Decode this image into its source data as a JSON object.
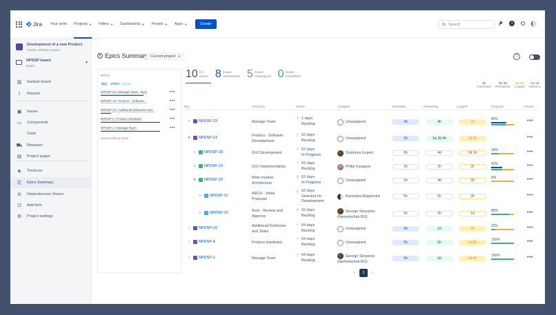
{
  "topbar": {
    "app_name": "Jira",
    "nav": [
      {
        "label": "Your work",
        "dropdown": false,
        "active": false
      },
      {
        "label": "Projects",
        "dropdown": true,
        "active": true
      },
      {
        "label": "Filters",
        "dropdown": true,
        "active": false
      },
      {
        "label": "Dashboards",
        "dropdown": true,
        "active": false
      },
      {
        "label": "People",
        "dropdown": true,
        "active": false
      },
      {
        "label": "Apps",
        "dropdown": true,
        "active": false
      }
    ],
    "create_label": "Create",
    "search_placeholder": "Search"
  },
  "sidebar": {
    "project_title": "Development of a new Product",
    "project_subtitle": "Classic software project",
    "board_title": "NPDSP board",
    "board_subtitle": "Board",
    "items": [
      {
        "label": "Kanban board",
        "icon": "kanban-icon"
      },
      {
        "label": "Reports",
        "icon": "reports-icon"
      },
      {
        "label": "Issues",
        "icon": "issues-icon"
      },
      {
        "label": "Components",
        "icon": "components-icon"
      },
      {
        "label": "Code",
        "icon": "code-icon"
      },
      {
        "label": "Releases",
        "icon": "releases-icon"
      },
      {
        "label": "Project pages",
        "icon": "pages-icon"
      },
      {
        "label": "TimeLine",
        "icon": "timeline-icon"
      },
      {
        "label": "Epics Summary",
        "icon": "epics-summary-icon",
        "active": true
      },
      {
        "label": "Dependencies Viewer",
        "icon": "dependencies-icon"
      },
      {
        "label": "Add item",
        "icon": "add-item-icon"
      },
      {
        "label": "Project settings",
        "icon": "settings-icon"
      }
    ]
  },
  "main": {
    "title": "Epics Summary",
    "project_select": "Current project",
    "epics_panel": {
      "heading": "EPICS",
      "filters": [
        "ALL",
        "OPEN",
        "DONE"
      ],
      "epics": [
        {
          "label": "NPDSP-23 / Manage Team - Epic",
          "bar": 72
        },
        {
          "label": "NPDSP-13 / Product - Software...",
          "bar": 0
        },
        {
          "label": "NPDSP-10 / Additional Deliveries and...",
          "bar": 18
        },
        {
          "label": "NPDSP-4 / Product Hardware",
          "bar": 100
        },
        {
          "label": "NPDSP-1 / Manage Team",
          "bar": 100
        }
      ],
      "no_epic_label": "Issues without epics"
    },
    "stats": [
      {
        "num": "10",
        "line1": "All",
        "line2": "Issues",
        "color": "#42526e"
      },
      {
        "num": "8",
        "line1": "Issues",
        "line2": "Unestimated",
        "color": "#0052cc"
      },
      {
        "num": "5",
        "line1": "Issues",
        "line2": "Unassigned",
        "color": "#7a869a"
      },
      {
        "num": "0",
        "line1": "Issues",
        "line2": "Completed",
        "color": "#36b37e"
      }
    ],
    "summary": [
      {
        "value": "6h",
        "label": "Estimated",
        "color": "#0052cc"
      },
      {
        "value": "2w 3d",
        "label": "Remaining",
        "color": "#006644"
      },
      {
        "value": "3w 6h",
        "label": "Logged",
        "color": "#ff8b00"
      },
      {
        "value": "5w 3d",
        "label": "Variance",
        "color": "#de350b"
      }
    ],
    "columns": [
      "Key",
      "Summary",
      "Status",
      "Assignee",
      "Estimated",
      "Remaining",
      "Logged",
      "Progress",
      "Actions"
    ],
    "rows": [
      {
        "key": "NPDSP-23",
        "type": "epic",
        "indent": 0,
        "toggle": "•",
        "summary": [
          "Manage Team"
        ],
        "days": "1 days",
        "status": "Backlog",
        "arrow": "up-orange",
        "assignee": [
          "Unassigned"
        ],
        "avatar": "unassigned",
        "est": "4h",
        "rem": "4h",
        "log": "2d",
        "filled": true,
        "pct": "80%",
        "blue": 22,
        "green": 22,
        "orange": 11
      },
      {
        "key": "NPDSP-13",
        "type": "epic",
        "indent": 0,
        "toggle": "▾",
        "summary": [
          "Product - Software",
          "Development"
        ],
        "days": "62 days",
        "status": "Backlog",
        "arrow": "up-orange",
        "assignee": [
          "Unassigned"
        ],
        "avatar": "unassigned",
        "est": "2h",
        "rem": "1w 3d 4h",
        "log": "3d 6h",
        "filled": true,
        "pct": "",
        "blue": 0,
        "green": 0,
        "orange": 0
      },
      {
        "key": "NPDSP-18",
        "type": "story",
        "indent": 1,
        "toggle": "•",
        "summary": [
          "GUI Development"
        ],
        "days": "62 days",
        "status": "In Progress",
        "arrow": "up-orange",
        "assignee": [
          "Solutions Expert"
        ],
        "avatar": "photo-dark",
        "est": "0h",
        "rem": "4d",
        "log": "2d 1h",
        "filled": false,
        "pct": "34%",
        "blue": 0,
        "green": 11,
        "orange": 22
      },
      {
        "key": "NPDSP-19",
        "type": "story",
        "indent": 1,
        "toggle": "•",
        "summary": [
          "GUI Implementation"
        ],
        "days": "62 days",
        "status": "Backlog",
        "arrow": "up-orange",
        "assignee": [
          "Philip Kasapov"
        ],
        "avatar": "photo-mid",
        "est": "2h",
        "rem": "2h",
        "log": "2h",
        "filled": false,
        "pct": "50%",
        "blue": 16,
        "green": 16,
        "orange": 17
      },
      {
        "key": "NPDSP-20",
        "type": "story",
        "indent": 1,
        "toggle": "▾",
        "summary": [
          "Main module",
          "Architecture"
        ],
        "days": "62 days",
        "status": "In Progress",
        "arrow": "up-red",
        "assignee": [
          "Unassigned"
        ],
        "avatar": "unassigned",
        "est": "0h",
        "rem": "4d",
        "log": "3h",
        "filled": false,
        "pct": "8%",
        "blue": 0,
        "green": 0,
        "orange": 33
      },
      {
        "key": "NPDSP-21",
        "type": "subtask",
        "indent": 2,
        "toggle": "•",
        "summary": [
          "ARCH - Initial",
          "Proposal"
        ],
        "days": "62 days",
        "status": "Selected for Development",
        "arrow": "down-green",
        "assignee": [
          "Kameliya Magunska"
        ],
        "avatar": "photo-half",
        "est": "0h",
        "rem": "0h",
        "log": "0h",
        "filled": false,
        "pct": "",
        "blue": 0,
        "green": 0,
        "orange": 0
      },
      {
        "key": "NPDSP-22",
        "type": "subtask",
        "indent": 2,
        "toggle": "•",
        "summary": [
          "Arch - Review and",
          "Approve"
        ],
        "days": "62 days",
        "status": "Backlog",
        "arrow": "up-red",
        "assignee": [
          "George Stoyanov",
          "(Nemetschek BG)"
        ],
        "avatar": "photo-dark",
        "est": "0h",
        "rem": "2h",
        "log": "1d",
        "filled": false,
        "pct": "80%",
        "blue": 0,
        "green": 26,
        "orange": 7
      },
      {
        "key": "NPDSP-10",
        "type": "epic",
        "indent": 0,
        "toggle": "›",
        "summary": [
          "Additional Deliveries",
          "and Tasks"
        ],
        "days": "64 days",
        "status": "Backlog",
        "arrow": "up-orange",
        "assignee": [
          "Unassigned"
        ],
        "avatar": "unassigned",
        "est": "0h",
        "rem": "1d",
        "log": "6h",
        "filled": true,
        "pct": "20%",
        "blue": 0,
        "green": 6,
        "orange": 27
      },
      {
        "key": "NPDSP-4",
        "type": "epic",
        "indent": 0,
        "toggle": "›",
        "summary": [
          "Product Hardware"
        ],
        "days": "64 days",
        "status": "Backlog",
        "arrow": "up-orange",
        "assignee": [
          "Unassigned"
        ],
        "avatar": "unassigned",
        "est": "0h",
        "rem": "0h",
        "log": "1w 6h",
        "filled": true,
        "pct": "100%",
        "blue": 0,
        "green": 33,
        "orange": 0
      },
      {
        "key": "NPDSP-1",
        "type": "epic",
        "indent": 0,
        "toggle": "›",
        "summary": [
          "Manage Team"
        ],
        "days": "64 days",
        "status": "Backlog",
        "arrow": "up-orange",
        "assignee": [
          "George Stoyanov",
          "(Nemetschek BG)"
        ],
        "avatar": "photo-dark",
        "est": "0h",
        "rem": "3d",
        "log": "3d 4h",
        "filled": true,
        "pct": "100%",
        "blue": 0,
        "green": 33,
        "orange": 0
      }
    ],
    "pager": {
      "prev": "‹",
      "current": "1",
      "next": "›"
    }
  },
  "colors": {
    "frame": "#42526e",
    "primary": "#0052cc",
    "epic": "#6554c0",
    "story": "#36b37e",
    "subtask": "#4bade8",
    "green_bar": "#36b37e",
    "orange_bar": "#f6a83c"
  }
}
